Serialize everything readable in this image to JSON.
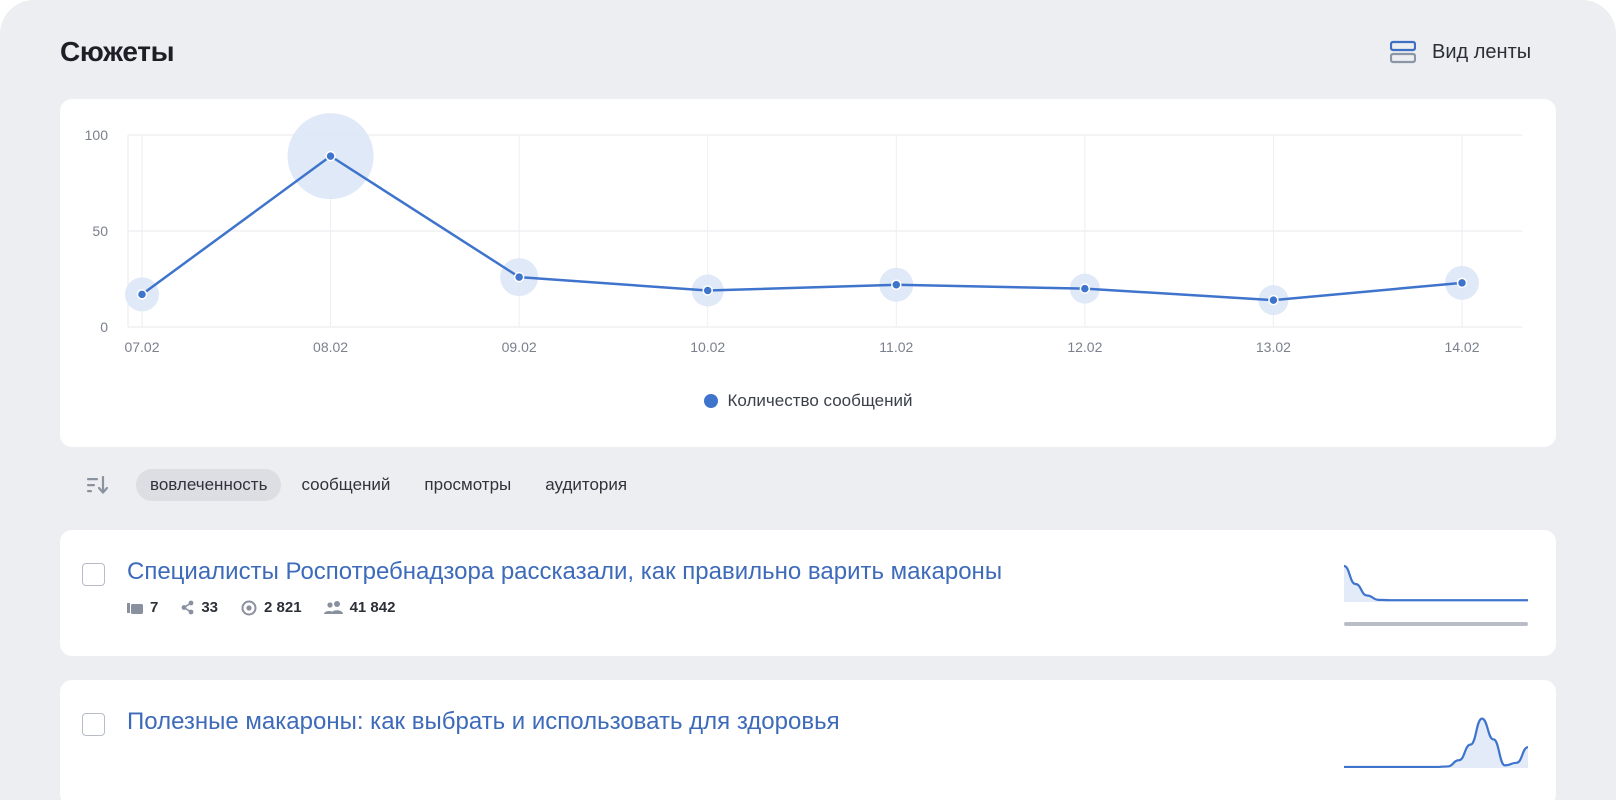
{
  "page": {
    "title": "Сюжеты"
  },
  "header": {
    "feed_view_label": "Вид ленты",
    "feed_view_icon": "list-view-icon"
  },
  "chart_data": {
    "type": "line",
    "categories": [
      "07.02",
      "08.02",
      "09.02",
      "10.02",
      "11.02",
      "12.02",
      "13.02",
      "14.02"
    ],
    "series": [
      {
        "name": "Количество сообщений",
        "values": [
          17,
          89,
          26,
          19,
          22,
          20,
          14,
          23
        ],
        "color": "#3f74cc"
      }
    ],
    "bubble_sizes": [
      7,
      33,
      9,
      6,
      7,
      5,
      5,
      7
    ],
    "yticks": [
      0,
      50,
      100
    ],
    "ylim": [
      0,
      100
    ],
    "grid": true,
    "legend": "bottom-center",
    "title": "",
    "xlabel": "",
    "ylabel": ""
  },
  "sort": {
    "icon": "sort-descending-icon",
    "options": [
      "вовлеченность",
      "сообщений",
      "просмотры",
      "аудитория"
    ],
    "active": "вовлеченность"
  },
  "stories": [
    {
      "title": "Специалисты Роспотребнадзора рассказали, как правильно варить макароны",
      "messages": "7",
      "reposts": "33",
      "views": "2 821",
      "audience": "41 842",
      "spark": [
        1.0,
        0.5,
        0.18,
        0.06,
        0.05,
        0.05,
        0.05,
        0.05,
        0.05,
        0.05,
        0.05,
        0.05,
        0.05,
        0.05,
        0.05,
        0.05,
        0.05
      ]
    },
    {
      "title": "Полезные макароны: как выбрать и использовать для здоровья",
      "spark": [
        0.02,
        0.02,
        0.02,
        0.02,
        0.02,
        0.02,
        0.02,
        0.02,
        0.02,
        0.03,
        0.15,
        0.45,
        0.95,
        0.55,
        0.05,
        0.1,
        0.4
      ]
    }
  ],
  "colors": {
    "accent": "#3f74cc",
    "link": "#3d6bba",
    "panel_bg": "#eceef1",
    "bubble": "#dbe5f6"
  }
}
